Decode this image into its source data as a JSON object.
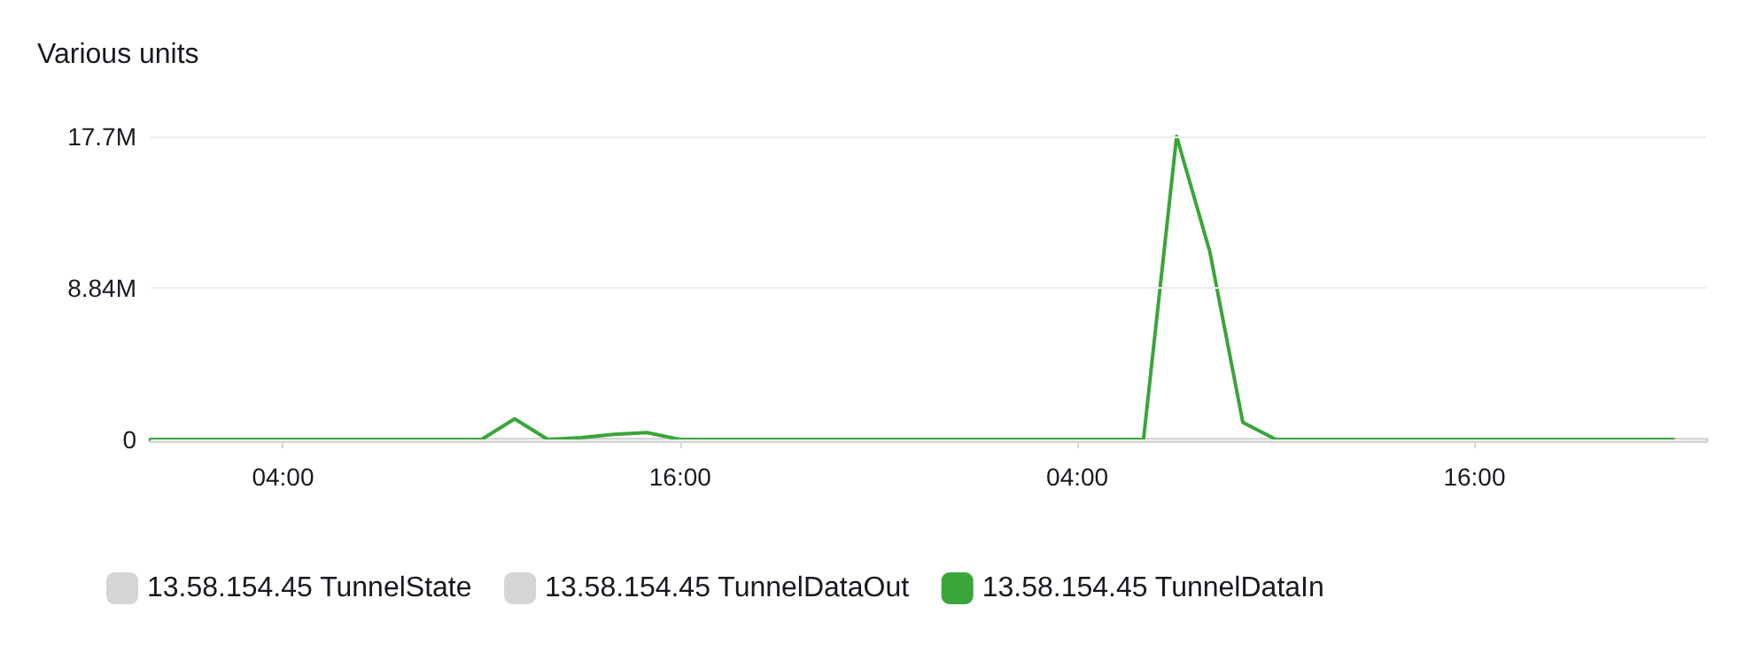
{
  "chart_data": {
    "type": "line",
    "ylabel": "Various units",
    "categories": [
      null,
      null,
      null,
      null,
      "04:00",
      null,
      null,
      null,
      null,
      null,
      null,
      null,
      null,
      null,
      null,
      null,
      "16:00",
      null,
      null,
      null,
      null,
      null,
      null,
      null,
      null,
      null,
      null,
      null,
      "04:00",
      null,
      null,
      null,
      null,
      null,
      null,
      null,
      null,
      null,
      null,
      null,
      "16:00",
      null,
      null,
      null,
      null,
      null,
      null,
      null
    ],
    "ylim": [
      0,
      17700000
    ],
    "yticks": [
      0,
      {
        "value": 8840000,
        "label": "8.84M"
      },
      {
        "value": 17700000,
        "label": "17.7M"
      }
    ],
    "grid": "y",
    "legend": "bottom",
    "marker": "none",
    "line_style": "solid",
    "series": [
      {
        "name": "13.58.154.45 TunnelState",
        "color": "#d5d5d5",
        "values": [
          null,
          null,
          null,
          null,
          null,
          null,
          null,
          null,
          null,
          null,
          null,
          null,
          null,
          null,
          null,
          null,
          null,
          null,
          null,
          null,
          null,
          null,
          null,
          null,
          null,
          null,
          null,
          null,
          null,
          null,
          null,
          null,
          null,
          null,
          null,
          null,
          null,
          null,
          null,
          null,
          null,
          null,
          null,
          null,
          null,
          null,
          null,
          null
        ]
      },
      {
        "name": "13.58.154.45 TunnelDataOut",
        "color": "#d5d5d5",
        "values": [
          null,
          null,
          null,
          null,
          null,
          null,
          null,
          null,
          null,
          null,
          null,
          null,
          null,
          null,
          null,
          null,
          null,
          null,
          null,
          null,
          null,
          null,
          null,
          null,
          null,
          null,
          null,
          null,
          null,
          null,
          null,
          null,
          null,
          null,
          null,
          null,
          null,
          null,
          null,
          null,
          null,
          null,
          null,
          null,
          null,
          null,
          null,
          null
        ]
      },
      {
        "name": "13.58.154.45 TunnelDataIn",
        "color": "#3aa53a",
        "values": [
          0,
          0,
          0,
          0,
          0,
          0,
          0,
          0,
          0,
          0,
          0,
          1200000,
          0,
          100000,
          300000,
          400000,
          0,
          0,
          0,
          0,
          0,
          0,
          0,
          0,
          0,
          0,
          0,
          0,
          0,
          0,
          0,
          17700000,
          11000000,
          1000000,
          0,
          0,
          0,
          0,
          0,
          0,
          0,
          0,
          0,
          0,
          0,
          0,
          0,
          null
        ]
      }
    ]
  }
}
